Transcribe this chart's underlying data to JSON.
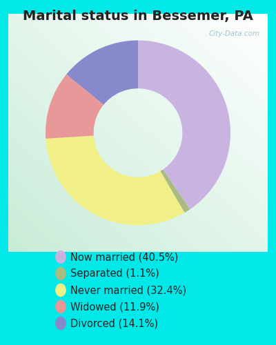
{
  "title": "Marital status in Bessemer, PA",
  "slices": [
    40.5,
    1.1,
    32.4,
    11.9,
    14.1
  ],
  "labels": [
    "Now married (40.5%)",
    "Separated (1.1%)",
    "Never married (32.4%)",
    "Widowed (11.9%)",
    "Divorced (14.1%)"
  ],
  "colors": [
    "#c9b3e0",
    "#a8bb80",
    "#f0ef88",
    "#e89898",
    "#8888cc"
  ],
  "outer_bg": "#00e8e8",
  "title_fontsize": 14,
  "legend_fontsize": 10.5,
  "watermark": "City-Data.com",
  "start_angle": 90,
  "donut_width": 0.52,
  "chart_bg_colors": [
    "#f0f8f0",
    "#d8eed8"
  ],
  "title_color": "#222222"
}
